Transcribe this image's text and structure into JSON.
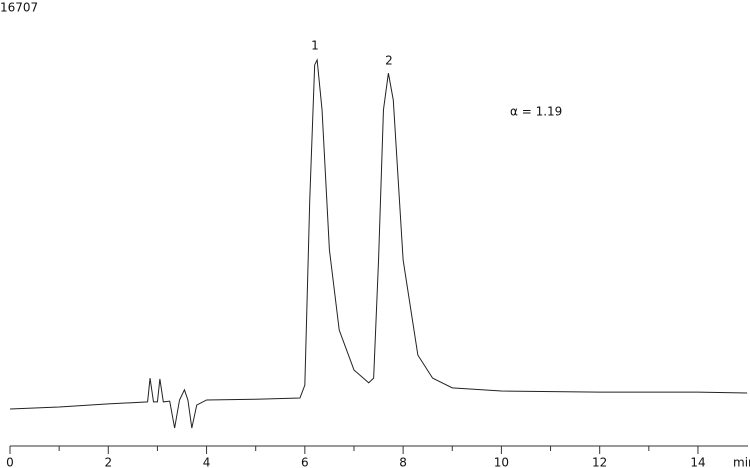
{
  "chart_data": {
    "type": "line",
    "title": "16707",
    "x_label": "min",
    "annotations": [
      "1",
      "2",
      "α = 1.19"
    ],
    "xlim": [
      0,
      15
    ],
    "ylim": [
      0,
      100
    ],
    "xticks": [
      0,
      2,
      4,
      6,
      8,
      10,
      12,
      14
    ],
    "xminor_ticks": [
      1,
      3,
      5,
      7,
      9,
      11,
      13
    ],
    "color": "#222222",
    "x": [
      0,
      1,
      2,
      2.8,
      2.85,
      2.92,
      3.0,
      3.05,
      3.12,
      3.25,
      3.35,
      3.45,
      3.55,
      3.62,
      3.7,
      3.8,
      4.0,
      5.0,
      5.9,
      6.0,
      6.1,
      6.2,
      6.25,
      6.35,
      6.5,
      6.7,
      7.0,
      7.3,
      7.4,
      7.5,
      7.6,
      7.7,
      7.8,
      8.0,
      8.3,
      8.6,
      9.0,
      10,
      12,
      14,
      15
    ],
    "values": [
      5.4,
      5.9,
      6.7,
      7.2,
      13.3,
      7.2,
      7.2,
      13.1,
      7.2,
      7.4,
      0.5,
      7.7,
      10.3,
      7.7,
      0.5,
      6.4,
      7.7,
      7.9,
      8.2,
      11.5,
      59.0,
      93.6,
      94.9,
      82.1,
      46.2,
      25.6,
      15.4,
      12.1,
      13.3,
      43.6,
      82.1,
      91.5,
      84.6,
      43.6,
      19.2,
      13.3,
      10.8,
      10.0,
      9.7,
      9.7,
      9.5
    ]
  }
}
